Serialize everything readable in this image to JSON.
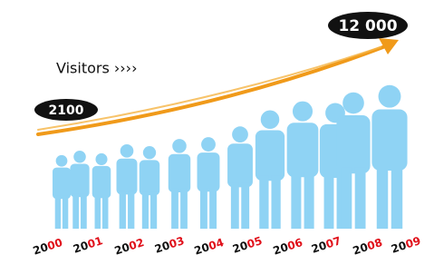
{
  "headline_value": "12 000",
  "label": "Visitors ››››",
  "start_value": "2100",
  "years": [
    {
      "century": "20",
      "decade": "00"
    },
    {
      "century": "20",
      "decade": "01"
    },
    {
      "century": "20",
      "decade": "02"
    },
    {
      "century": "20",
      "decade": "03"
    },
    {
      "century": "20",
      "decade": "04"
    },
    {
      "century": "20",
      "decade": "05"
    },
    {
      "century": "20",
      "decade": "06"
    },
    {
      "century": "20",
      "decade": "07"
    },
    {
      "century": "20",
      "decade": "08"
    },
    {
      "century": "20",
      "decade": "09"
    }
  ]
}
